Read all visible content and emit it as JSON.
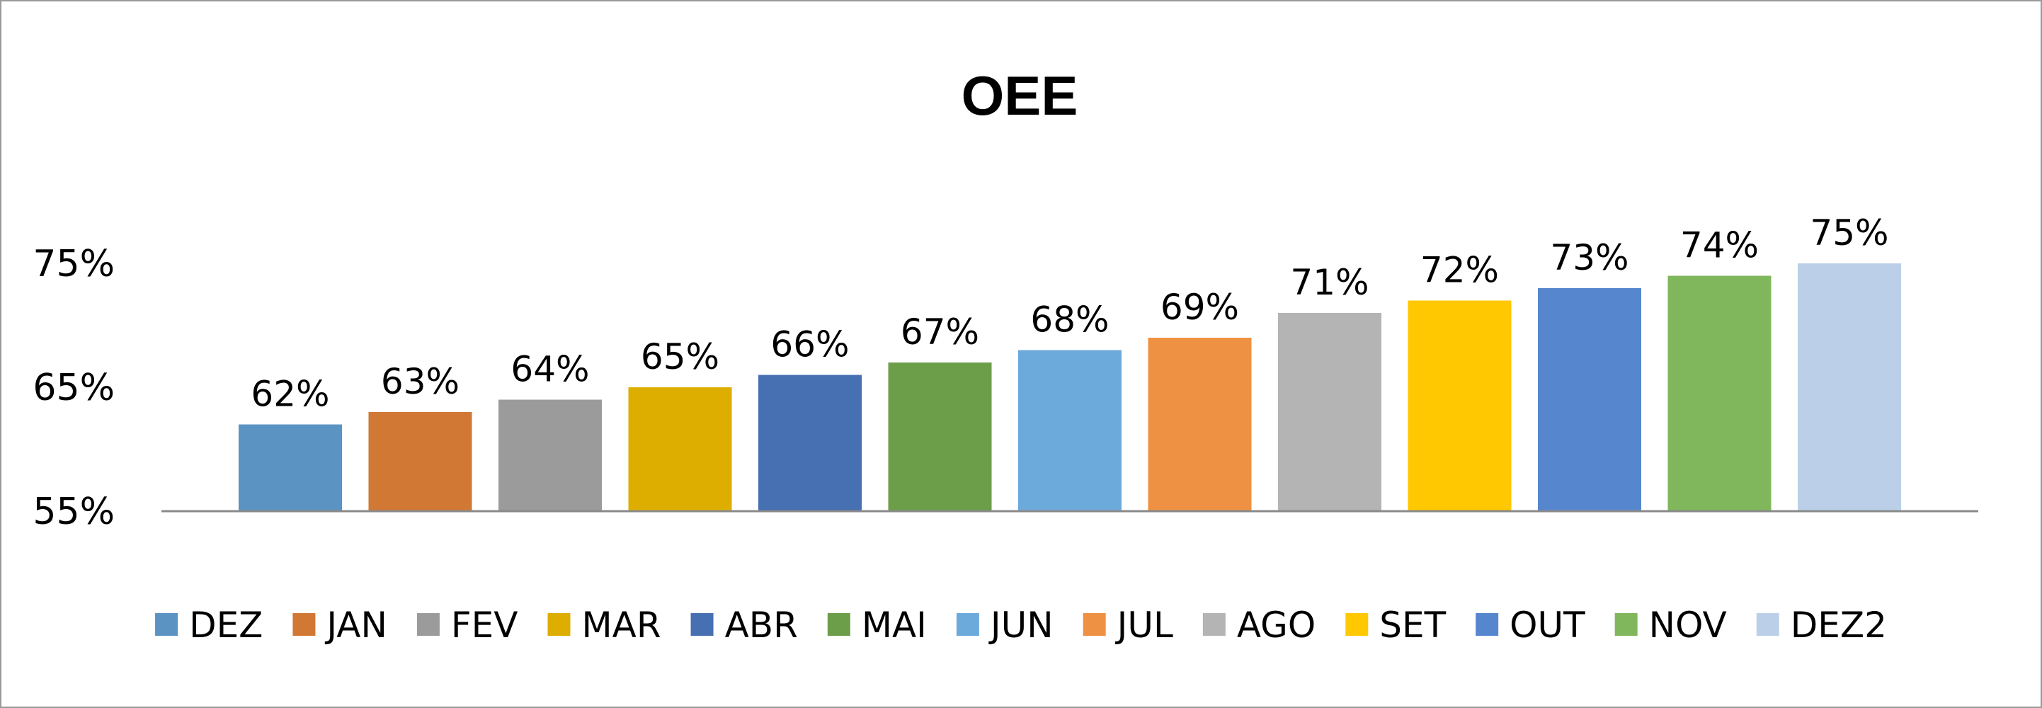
{
  "chart_data": {
    "type": "bar",
    "title": "OEE",
    "xlabel": "",
    "ylabel": "",
    "ylim": [
      55,
      75
    ],
    "y_ticks": [
      "75%",
      "65%",
      "55%"
    ],
    "y_tick_values": [
      75,
      65,
      55
    ],
    "legend_position": "bottom",
    "grid": false,
    "series": [
      {
        "name": "DEZ",
        "value": 62,
        "label": "62%",
        "color": "#5B93C2"
      },
      {
        "name": "JAN",
        "value": 63,
        "label": "63%",
        "color": "#D17835"
      },
      {
        "name": "FEV",
        "value": 64,
        "label": "64%",
        "color": "#9B9B9B"
      },
      {
        "name": "MAR",
        "value": 65,
        "label": "65%",
        "color": "#DDAD00"
      },
      {
        "name": "ABR",
        "value": 66,
        "label": "66%",
        "color": "#4670B2"
      },
      {
        "name": "MAI",
        "value": 67,
        "label": "67%",
        "color": "#6C9D49"
      },
      {
        "name": "JUN",
        "value": 68,
        "label": "68%",
        "color": "#6DAADC"
      },
      {
        "name": "JUL",
        "value": 69,
        "label": "69%",
        "color": "#EF9142"
      },
      {
        "name": "AGO",
        "value": 71,
        "label": "71%",
        "color": "#B4B4B4"
      },
      {
        "name": "SET",
        "value": 72,
        "label": "72%",
        "color": "#FFC800"
      },
      {
        "name": "OUT",
        "value": 73,
        "label": "73%",
        "color": "#5687CE"
      },
      {
        "name": "NOV",
        "value": 74,
        "label": "74%",
        "color": "#80B75C"
      },
      {
        "name": "DEZ2",
        "value": 75,
        "label": "75%",
        "color": "#BBD0E8"
      }
    ]
  }
}
